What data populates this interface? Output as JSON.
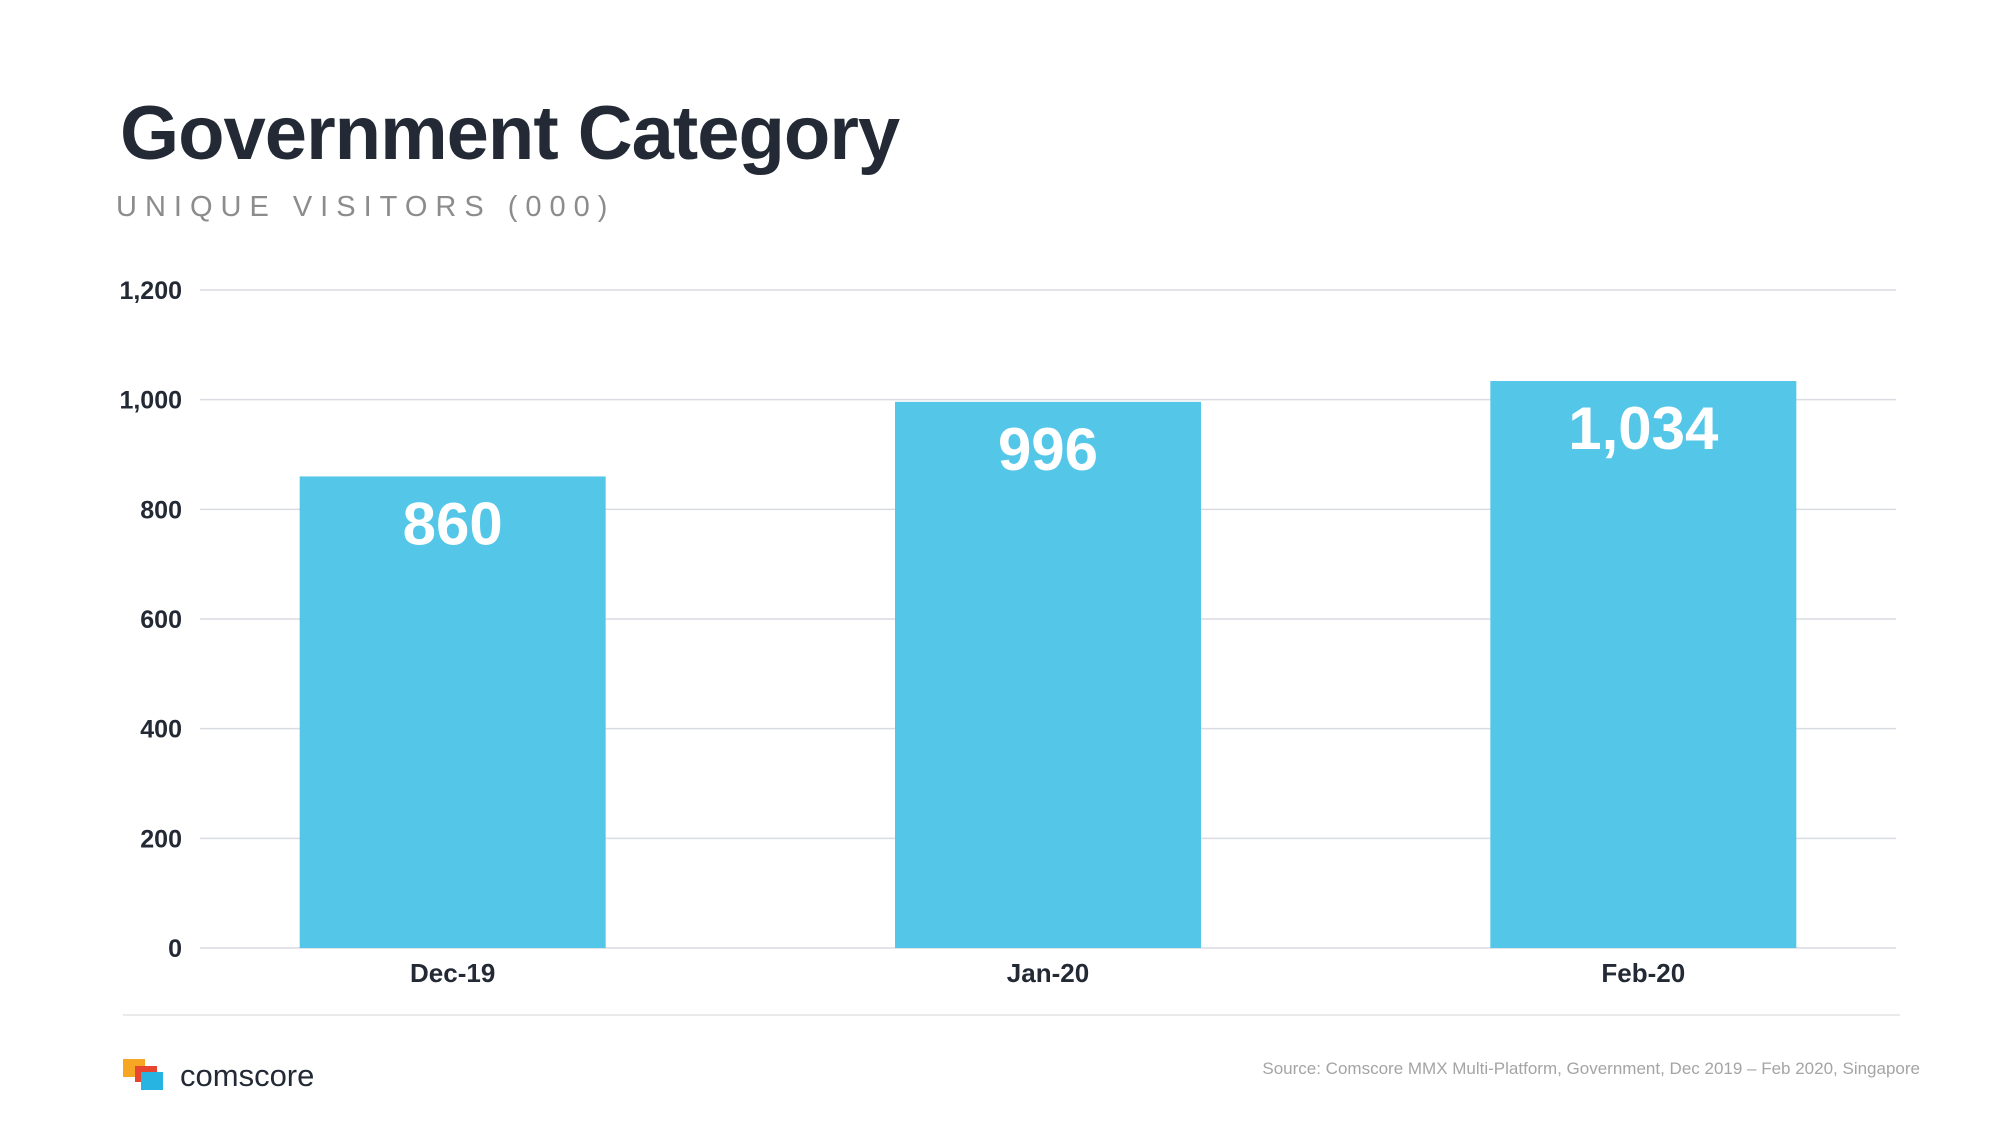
{
  "header": {
    "title": "Government Category",
    "subtitle": "UNIQUE VISITORS (000)"
  },
  "chart_data": {
    "type": "bar",
    "title": "Government Category",
    "subtitle": "UNIQUE VISITORS (000)",
    "categories": [
      "Dec-19",
      "Jan-20",
      "Feb-20"
    ],
    "values": [
      860,
      996,
      1034
    ],
    "data_labels": [
      "860",
      "996",
      "1,034"
    ],
    "ylim": [
      0,
      1200
    ],
    "yticks": [
      0,
      200,
      400,
      600,
      800,
      1000,
      1200
    ],
    "ytick_labels": [
      "0",
      "200",
      "400",
      "600",
      "800",
      "1,000",
      "1,200"
    ],
    "grid": true,
    "legend": "none",
    "colors": {
      "bar": "#54c7e8",
      "grid": "#d9dce3",
      "axis_text": "#232a35",
      "data_label": "#ffffff"
    }
  },
  "footer": {
    "logo_text": "comscore",
    "logo_icon": "comscore-logo-icon",
    "source": "Source: Comscore MMX Multi-Platform, Government, Dec 2019 – Feb 2020, Singapore"
  }
}
